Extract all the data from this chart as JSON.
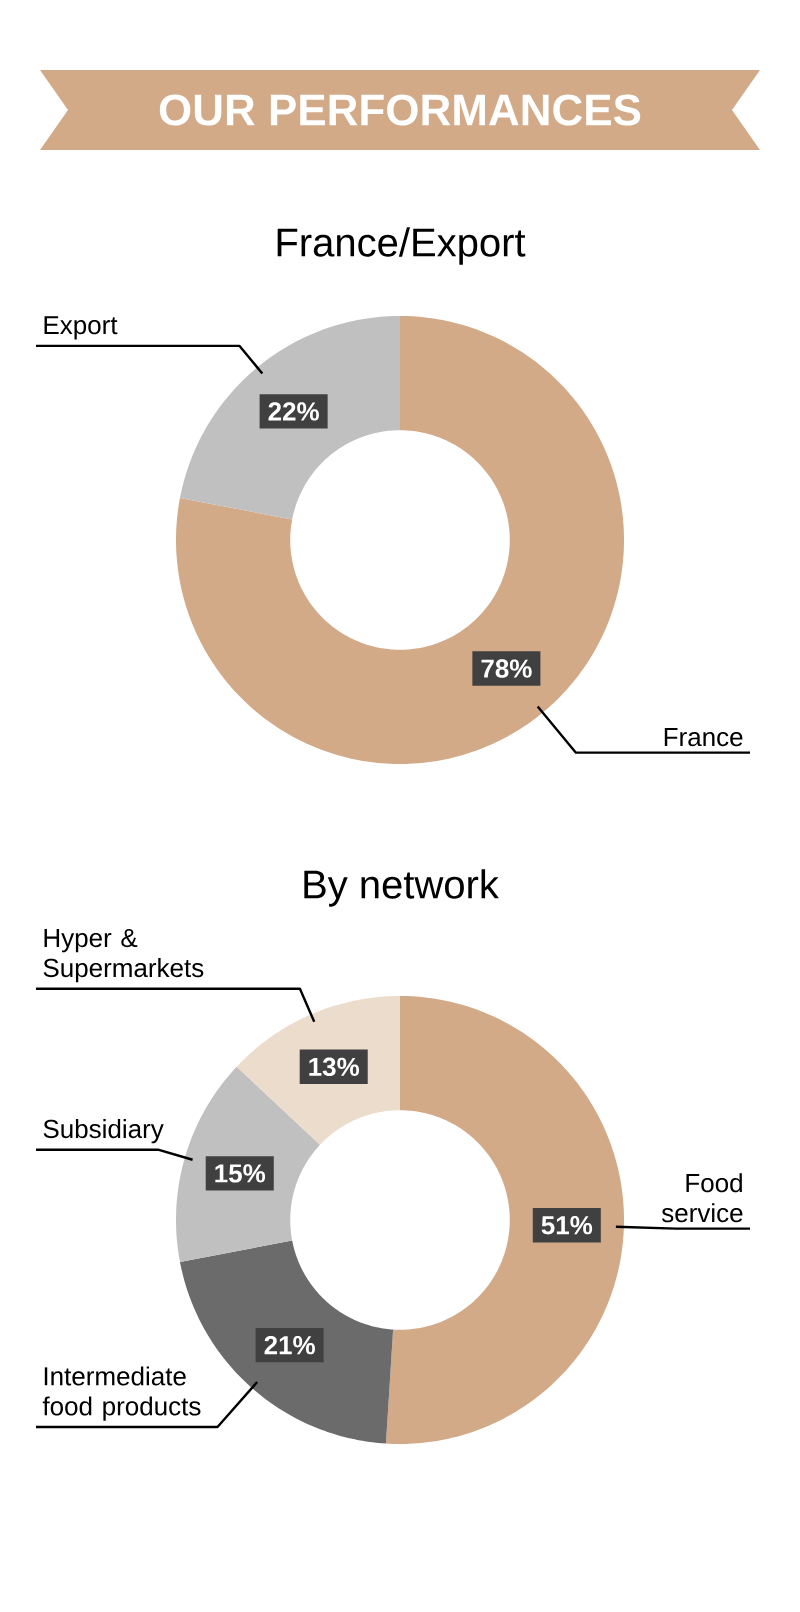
{
  "chart_data": [
    {
      "type": "donut",
      "title": "OUR PERFORMANCES",
      "subtitle": "France/Export",
      "categories": [
        "France",
        "Export"
      ],
      "values": [
        78,
        22
      ],
      "colors": [
        "#d2aa88",
        "#c0c0c0"
      ],
      "value_labels": [
        "78%",
        "22%"
      ]
    },
    {
      "type": "donut",
      "title": "By network",
      "categories": [
        "Food service",
        "Intermediate food products",
        "Subsidiary",
        "Hyper & Supermarkets"
      ],
      "values": [
        51,
        21,
        15,
        13
      ],
      "colors": [
        "#d2aa88",
        "#6b6b6b",
        "#c0c0c0",
        "#ecdccc"
      ],
      "value_labels": [
        "51%",
        "21%",
        "15%",
        "13%"
      ]
    }
  ]
}
